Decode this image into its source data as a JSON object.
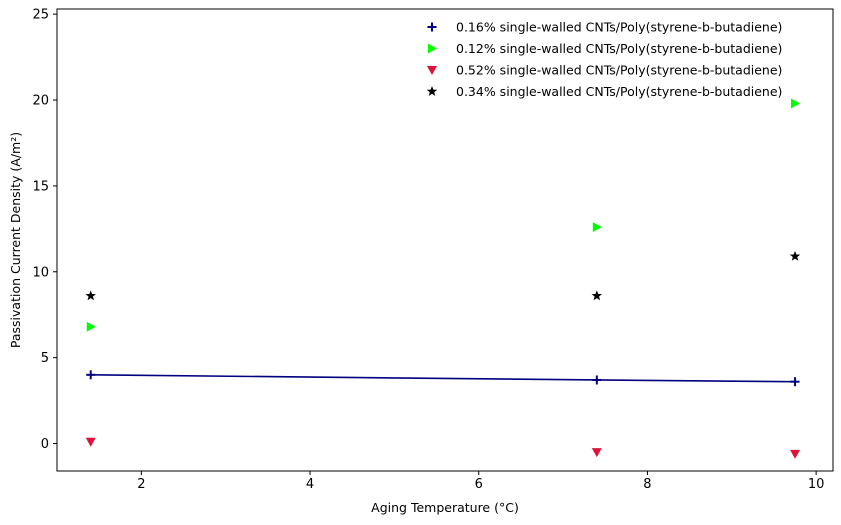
{
  "chart_data": {
    "type": "scatter",
    "title": "",
    "xlabel": "Aging Temperature (°C)",
    "ylabel": "Passivation Current Density (A/m²)",
    "xlim": [
      1.0,
      10.2
    ],
    "ylim": [
      -1.6,
      25.3
    ],
    "xticks": [
      2,
      4,
      6,
      8,
      10
    ],
    "yticks": [
      0,
      5,
      10,
      15,
      20,
      25
    ],
    "grid": false,
    "legend_position": "top-right",
    "series": [
      {
        "name": "0.16% single-walled CNTs/Poly(styrene-b-butadiene)",
        "marker": "plus",
        "color": "#000080",
        "x": [
          1.4,
          7.4,
          9.75
        ],
        "y": [
          4.0,
          3.7,
          3.6
        ],
        "trend_line": true
      },
      {
        "name": "0.12% single-walled CNTs/Poly(styrene-b-butadiene)",
        "marker": "triangle-right",
        "color": "#00ff00",
        "x": [
          1.4,
          7.4,
          9.75
        ],
        "y": [
          6.8,
          12.6,
          19.8
        ]
      },
      {
        "name": "0.52% single-walled CNTs/Poly(styrene-b-butadiene)",
        "marker": "triangle-down",
        "color": "#dc143c",
        "x": [
          1.4,
          7.4,
          9.75
        ],
        "y": [
          0.1,
          -0.5,
          -0.6
        ]
      },
      {
        "name": "0.34% single-walled CNTs/Poly(styrene-b-butadiene)",
        "marker": "star",
        "color": "#000000",
        "x": [
          1.4,
          7.4,
          9.75
        ],
        "y": [
          8.6,
          8.6,
          10.9
        ]
      }
    ]
  }
}
